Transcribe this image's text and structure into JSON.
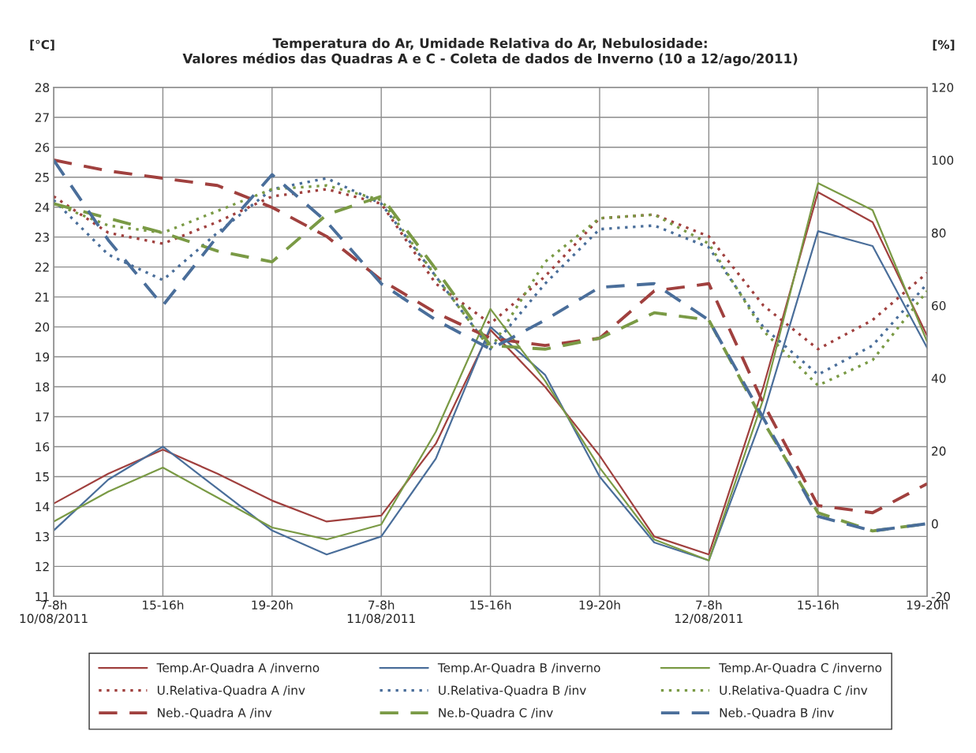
{
  "chart_data": {
    "type": "line",
    "title": "Temperatura do Ar, Umidade Relativa do Ar, Nebulosidade:\nValores médios das Quadras A e C - Coleta de dados de Inverno (10 a 12/ago/2011)",
    "ylabel": "[°C]",
    "y2label": "[%]",
    "categories": [
      "7-8h\n10/08/2011",
      null,
      "15-16h",
      null,
      "19-20h",
      null,
      "7-8h\n11/08/2011",
      null,
      "15-16h",
      null,
      "19-20h",
      null,
      "7-8h\n12/08/2011",
      null,
      "15-16h",
      null,
      "19-20h"
    ],
    "ylim": [
      11,
      28
    ],
    "yticks": [
      11,
      12,
      13,
      14,
      15,
      16,
      17,
      18,
      19,
      20,
      21,
      22,
      23,
      24,
      25,
      26,
      27,
      28
    ],
    "y2lim": [
      -20,
      120
    ],
    "y2ticks": [
      -20,
      0,
      20,
      40,
      60,
      80,
      100,
      120
    ],
    "grid": true,
    "legend": "bottom",
    "series": [
      {
        "name": "Temp.Ar-Quadra A /inverno",
        "color": "#a0403e",
        "line_style": "solid",
        "values": [
          14.1,
          15.1,
          15.9,
          15.1,
          14.2,
          13.5,
          13.7,
          16.1,
          19.9,
          18.0,
          15.7,
          13.0,
          12.4,
          18.0,
          24.5,
          23.5,
          19.7
        ]
      },
      {
        "name": "Temp.Ar-Quadra B /inverno",
        "color": "#4a6e9a",
        "line_style": "solid",
        "values": [
          13.2,
          14.9,
          16.0,
          14.6,
          13.2,
          12.4,
          13.0,
          15.6,
          20.0,
          18.4,
          15.0,
          12.8,
          12.2,
          17.1,
          23.2,
          22.7,
          19.3
        ]
      },
      {
        "name": "Temp.Ar-Quadra C /inverno",
        "color": "#7a9a45",
        "line_style": "solid",
        "values": [
          13.5,
          14.5,
          15.3,
          14.3,
          13.3,
          12.9,
          13.4,
          16.5,
          20.6,
          18.2,
          15.3,
          12.9,
          12.2,
          17.6,
          24.8,
          23.9,
          19.5
        ]
      },
      {
        "name": "U.Relativa-Quadra A /inv",
        "color": "#a0403e",
        "line_style": "dotted",
        "axis": "y2",
        "values": [
          90,
          80,
          77,
          83,
          90,
          92,
          88,
          66,
          55,
          68,
          84,
          85,
          79,
          60,
          48,
          56,
          69
        ]
      },
      {
        "name": "U.Relativa-Quadra B /inv",
        "color": "#4a6e9a",
        "line_style": "dotted",
        "axis": "y2",
        "values": [
          89,
          74,
          67,
          80,
          92,
          95,
          88,
          68,
          48,
          66,
          81,
          82,
          76,
          54,
          41,
          49,
          66
        ]
      },
      {
        "name": "U.Relativa-Quadra C /inv",
        "color": "#7a9a45",
        "line_style": "dotted",
        "axis": "y2",
        "values": [
          88,
          82,
          80,
          86,
          92,
          93,
          89,
          68,
          48,
          72,
          84,
          85,
          77,
          53,
          38,
          45,
          64
        ]
      },
      {
        "name": "Neb.-Quadra A /inv",
        "color": "#a0403e",
        "line_style": "dashed",
        "axis": "y2",
        "values": [
          100,
          97,
          95,
          93,
          87,
          79,
          67,
          58,
          51,
          49,
          51,
          64,
          66,
          33,
          5,
          3,
          11
        ]
      },
      {
        "name": "Ne.b-Quadra C /inv",
        "color": "#7a9a45",
        "line_style": "dashed",
        "axis": "y2",
        "values": [
          88,
          84,
          80,
          75,
          72,
          85,
          90,
          70,
          49,
          48,
          51,
          58,
          56,
          28,
          3,
          -2,
          0
        ]
      },
      {
        "name": "Neb.-Quadra B /inv",
        "color": "#4a6e9a",
        "line_style": "dashed",
        "axis": "y2",
        "values": [
          100,
          78,
          60,
          79,
          96,
          83,
          66,
          56,
          48,
          56,
          65,
          66,
          56,
          29,
          2,
          -2,
          0
        ]
      }
    ]
  }
}
